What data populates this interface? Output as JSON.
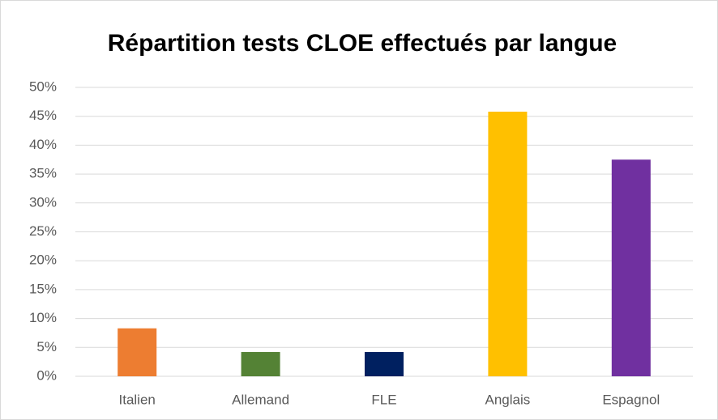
{
  "chart_data": {
    "type": "bar",
    "title": "Répartition tests CLOE effectués par langue",
    "categories": [
      "Italien",
      "Allemand",
      "FLE",
      "Anglais",
      "Espagnol"
    ],
    "values": [
      8.3,
      4.2,
      4.2,
      45.8,
      37.5
    ],
    "colors": [
      "#ed7d31",
      "#548235",
      "#002060",
      "#ffc000",
      "#7030a0"
    ],
    "ylim": [
      0,
      50
    ],
    "yticks": [
      {
        "value": 0,
        "label": "0%"
      },
      {
        "value": 5,
        "label": "5%"
      },
      {
        "value": 10,
        "label": "10%"
      },
      {
        "value": 15,
        "label": "15%"
      },
      {
        "value": 20,
        "label": "20%"
      },
      {
        "value": 25,
        "label": "25%"
      },
      {
        "value": 30,
        "label": "30%"
      },
      {
        "value": 35,
        "label": "35%"
      },
      {
        "value": 40,
        "label": "40%"
      },
      {
        "value": 45,
        "label": "45%"
      },
      {
        "value": 50,
        "label": "50%"
      }
    ],
    "grid": true
  }
}
